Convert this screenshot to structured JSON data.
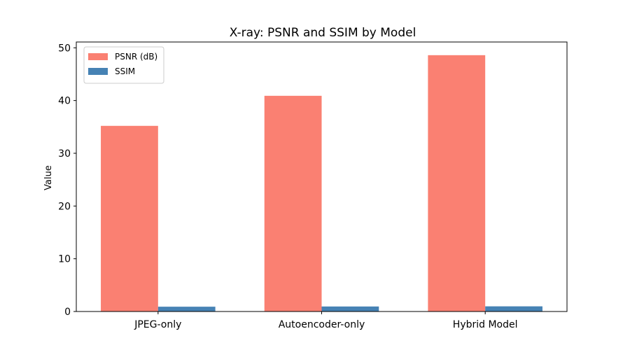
{
  "chart_data": {
    "type": "bar",
    "title": "X-ray: PSNR and SSIM by Model",
    "xlabel": "",
    "ylabel": "Value",
    "categories": [
      "JPEG-only",
      "Autoencoder-only",
      "Hybrid Model"
    ],
    "series": [
      {
        "name": "PSNR (dB)",
        "color": "#fa8072",
        "values": [
          35.2,
          40.9,
          48.6
        ]
      },
      {
        "name": "SSIM",
        "color": "#4682b4",
        "values": [
          0.91,
          0.95,
          0.98
        ]
      }
    ],
    "ylim": [
      0,
      51.1
    ],
    "yticks": [
      0,
      10,
      20,
      30,
      40,
      50
    ],
    "grid": false,
    "legend_position": "top-left"
  }
}
